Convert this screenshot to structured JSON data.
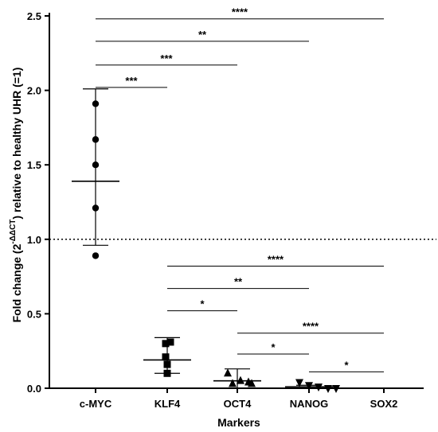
{
  "chart_data": {
    "type": "scatter",
    "xlabel": "Markers",
    "ylabel_prefix": "Fold change  (2",
    "ylabel_sup": "-ΔΔCT",
    "ylabel_suffix": ")  relative to healthy UHR (=1)",
    "ylim": [
      0,
      2.5
    ],
    "yticks": [
      "0.0",
      "0.5",
      "1.0",
      "1.5",
      "2.0",
      "2.5"
    ],
    "reference_line": 1.0,
    "categories": [
      "c-MYC",
      "KLF4",
      "OCT4",
      "NANOG",
      "SOX2"
    ],
    "groups": [
      {
        "category": "c-MYC",
        "marker": "circle",
        "points": [
          1.91,
          1.67,
          1.5,
          1.21,
          0.89
        ],
        "mean": 1.39,
        "sd_low": 0.96,
        "sd_high": 2.01
      },
      {
        "category": "KLF4",
        "marker": "square",
        "points": [
          0.31,
          0.3,
          0.21,
          0.16,
          0.1
        ],
        "mean": 0.19,
        "sd_low": 0.1,
        "sd_high": 0.34
      },
      {
        "category": "OCT4",
        "marker": "triangle-up",
        "points": [
          0.1,
          0.05,
          0.04,
          0.03,
          0.03
        ],
        "mean": 0.05,
        "sd_low": 0.0,
        "sd_high": 0.13
      },
      {
        "category": "NANOG",
        "marker": "triangle-down",
        "points": [
          0.04,
          0.02,
          0.01,
          0.0,
          0.0
        ],
        "mean": 0.01,
        "sd_low": 0.0,
        "sd_high": 0.02
      },
      {
        "category": "SOX2",
        "marker": "none",
        "points": [],
        "mean": null
      }
    ],
    "comparisons": [
      {
        "from": "c-MYC",
        "to": "SOX2",
        "label": "****",
        "y": 2.48
      },
      {
        "from": "c-MYC",
        "to": "NANOG",
        "label": "**",
        "y": 2.33
      },
      {
        "from": "c-MYC",
        "to": "OCT4",
        "label": "***",
        "y": 2.17
      },
      {
        "from": "c-MYC",
        "to": "KLF4",
        "label": "***",
        "y": 2.02
      },
      {
        "from": "KLF4",
        "to": "SOX2",
        "label": "****",
        "y": 0.82
      },
      {
        "from": "KLF4",
        "to": "NANOG",
        "label": "**",
        "y": 0.67
      },
      {
        "from": "KLF4",
        "to": "OCT4",
        "label": "*",
        "y": 0.52
      },
      {
        "from": "OCT4",
        "to": "SOX2",
        "label": "****",
        "y": 0.37
      },
      {
        "from": "OCT4",
        "to": "NANOG",
        "label": "*",
        "y": 0.23
      },
      {
        "from": "NANOG",
        "to": "SOX2",
        "label": "*",
        "y": 0.11
      }
    ],
    "colors": {
      "ink": "#000000"
    }
  }
}
